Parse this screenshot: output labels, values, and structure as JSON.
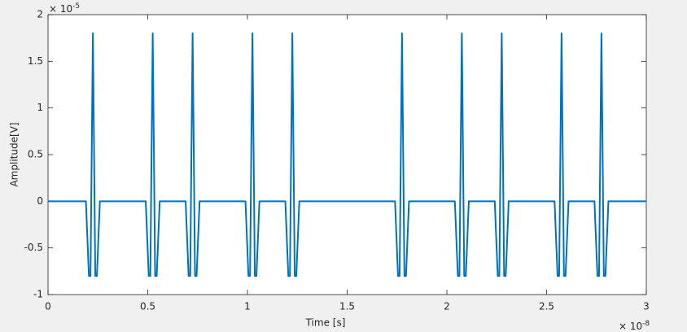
{
  "chart_data": {
    "type": "line",
    "xlabel": "Time [s]",
    "ylabel": "Amplitude[V]",
    "x_exponent": {
      "base": "× 10",
      "power": "-8"
    },
    "y_exponent": {
      "base": "× 10",
      "power": "-5"
    },
    "xlim": [
      0,
      3
    ],
    "ylim": [
      -1,
      2
    ],
    "xticks": [
      0,
      0.5,
      1,
      1.5,
      2,
      2.5,
      3
    ],
    "yticks": [
      -1,
      -0.5,
      0,
      0.5,
      1,
      1.5,
      2
    ],
    "x": [
      0,
      0.19,
      0.205,
      0.213,
      0.225,
      0.237,
      0.245,
      0.26,
      0.49,
      0.505,
      0.513,
      0.525,
      0.537,
      0.545,
      0.56,
      0.69,
      0.705,
      0.713,
      0.725,
      0.737,
      0.745,
      0.76,
      0.99,
      1.005,
      1.013,
      1.025,
      1.037,
      1.045,
      1.06,
      1.19,
      1.205,
      1.213,
      1.225,
      1.237,
      1.245,
      1.26,
      1.74,
      1.755,
      1.763,
      1.775,
      1.787,
      1.795,
      1.81,
      2.04,
      2.055,
      2.063,
      2.075,
      2.087,
      2.095,
      2.11,
      2.24,
      2.255,
      2.263,
      2.275,
      2.287,
      2.295,
      2.31,
      2.54,
      2.555,
      2.563,
      2.575,
      2.587,
      2.595,
      2.61,
      2.74,
      2.755,
      2.763,
      2.775,
      2.787,
      2.795,
      2.81,
      3
    ],
    "series": [
      {
        "color": "#0072bd",
        "values": [
          0,
          0,
          -0.8,
          -0.8,
          1.8,
          -0.8,
          -0.8,
          0,
          0,
          -0.8,
          -0.8,
          1.8,
          -0.8,
          -0.8,
          0,
          0,
          -0.8,
          -0.8,
          1.8,
          -0.8,
          -0.8,
          0,
          0,
          -0.8,
          -0.8,
          1.8,
          -0.8,
          -0.8,
          0,
          0,
          -0.8,
          -0.8,
          1.8,
          -0.8,
          -0.8,
          0,
          0,
          -0.8,
          -0.8,
          1.8,
          -0.8,
          -0.8,
          0,
          0,
          -0.8,
          -0.8,
          1.8,
          -0.8,
          -0.8,
          0,
          0,
          -0.8,
          -0.8,
          1.8,
          -0.8,
          -0.8,
          0,
          0,
          -0.8,
          -0.8,
          1.8,
          -0.8,
          -0.8,
          0,
          0,
          -0.8,
          -0.8,
          1.8,
          -0.8,
          -0.8,
          0,
          0
        ]
      }
    ]
  }
}
